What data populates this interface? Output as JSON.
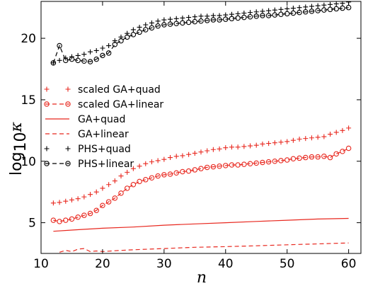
{
  "chart_data": {
    "type": "line",
    "title": "",
    "xlabel": "n",
    "ylabel_main": "log",
    "ylabel_sub": "10",
    "ylabel_var": "κ",
    "xlim": [
      10,
      62
    ],
    "ylim": [
      2.5,
      23
    ],
    "xticks": [
      10,
      20,
      30,
      40,
      50,
      60
    ],
    "yticks": [
      5,
      10,
      15,
      20
    ],
    "legend_position": "center-left",
    "series": [
      {
        "name": "scaled GA+quad",
        "color": "#e8281f",
        "line": "none",
        "marker": "plus",
        "x": [
          12,
          13,
          14,
          15,
          16,
          17,
          18,
          19,
          20,
          21,
          22,
          23,
          24,
          25,
          26,
          27,
          28,
          29,
          30,
          31,
          32,
          33,
          34,
          35,
          36,
          37,
          38,
          39,
          40,
          41,
          42,
          43,
          44,
          45,
          46,
          47,
          48,
          49,
          50,
          51,
          52,
          53,
          54,
          55,
          56,
          57,
          58,
          59,
          60
        ],
        "y": [
          6.6,
          6.65,
          6.75,
          6.85,
          6.95,
          7.1,
          7.3,
          7.5,
          7.8,
          8.1,
          8.4,
          8.8,
          9.1,
          9.4,
          9.6,
          9.8,
          9.95,
          10.05,
          10.15,
          10.3,
          10.4,
          10.45,
          10.55,
          10.65,
          10.75,
          10.85,
          10.95,
          11.0,
          11.1,
          11.15,
          11.15,
          11.2,
          11.25,
          11.3,
          11.4,
          11.45,
          11.5,
          11.55,
          11.6,
          11.7,
          11.8,
          11.85,
          11.9,
          11.95,
          12.0,
          12.2,
          12.35,
          12.5,
          12.7
        ]
      },
      {
        "name": "scaled GA+linear",
        "color": "#e8281f",
        "line": "dashed",
        "marker": "circle",
        "x": [
          12,
          13,
          14,
          15,
          16,
          17,
          18,
          19,
          20,
          21,
          22,
          23,
          24,
          25,
          26,
          27,
          28,
          29,
          30,
          31,
          32,
          33,
          34,
          35,
          36,
          37,
          38,
          39,
          40,
          41,
          42,
          43,
          44,
          45,
          46,
          47,
          48,
          49,
          50,
          51,
          52,
          53,
          54,
          55,
          56,
          57,
          58,
          59,
          60
        ],
        "y": [
          5.2,
          5.1,
          5.2,
          5.3,
          5.45,
          5.6,
          5.75,
          6.0,
          6.4,
          6.7,
          7.0,
          7.4,
          7.8,
          8.1,
          8.35,
          8.5,
          8.65,
          8.8,
          8.9,
          8.95,
          9.05,
          9.15,
          9.2,
          9.3,
          9.4,
          9.5,
          9.55,
          9.6,
          9.65,
          9.7,
          9.7,
          9.75,
          9.8,
          9.85,
          9.9,
          9.95,
          10.0,
          10.05,
          10.1,
          10.2,
          10.25,
          10.3,
          10.35,
          10.35,
          10.4,
          10.3,
          10.6,
          10.8,
          11.05
        ]
      },
      {
        "name": "GA+quad",
        "color": "#e8281f",
        "line": "solid",
        "marker": "none",
        "x": [
          12,
          15,
          20,
          25,
          30,
          35,
          40,
          45,
          50,
          55,
          60
        ],
        "y": [
          4.3,
          4.4,
          4.55,
          4.65,
          4.8,
          4.9,
          5.0,
          5.1,
          5.2,
          5.3,
          5.35
        ]
      },
      {
        "name": "GA+linear",
        "color": "#e8281f",
        "line": "dashed",
        "marker": "none",
        "x": [
          13,
          14,
          15,
          16,
          17,
          18,
          19,
          20,
          22,
          25,
          30,
          35,
          40,
          45,
          50,
          55,
          60
        ],
        "y": [
          2.6,
          2.75,
          2.65,
          2.85,
          2.9,
          2.65,
          2.7,
          2.65,
          2.72,
          2.8,
          2.9,
          3.0,
          3.05,
          3.12,
          3.2,
          3.28,
          3.35
        ]
      },
      {
        "name": "PHS+quad",
        "color": "#000000",
        "line": "none",
        "marker": "plus",
        "x": [
          12,
          13,
          14,
          15,
          16,
          17,
          18,
          19,
          20,
          21,
          22,
          23,
          24,
          25,
          26,
          27,
          28,
          29,
          30,
          31,
          32,
          33,
          34,
          35,
          36,
          37,
          38,
          39,
          40,
          41,
          42,
          43,
          44,
          45,
          46,
          47,
          48,
          49,
          50,
          51,
          52,
          53,
          54,
          55,
          56,
          57,
          58,
          59,
          60
        ],
        "y": [
          18.0,
          18.2,
          18.4,
          18.5,
          18.6,
          18.7,
          18.9,
          19.0,
          19.2,
          19.4,
          19.8,
          20.1,
          20.4,
          20.7,
          20.9,
          21.1,
          21.25,
          21.4,
          21.5,
          21.55,
          21.6,
          21.65,
          21.7,
          21.75,
          21.8,
          21.8,
          21.85,
          21.85,
          21.9,
          21.95,
          22.0,
          22.05,
          22.1,
          22.15,
          22.2,
          22.25,
          22.3,
          22.35,
          22.4,
          22.45,
          22.5,
          22.55,
          22.6,
          22.65,
          22.7,
          22.75,
          22.8,
          22.85,
          22.95
        ]
      },
      {
        "name": "PHS+linear",
        "color": "#000000",
        "line": "dashed",
        "marker": "circle",
        "x": [
          12,
          13,
          14,
          15,
          16,
          17,
          18,
          19,
          20,
          21,
          22,
          23,
          24,
          25,
          26,
          27,
          28,
          29,
          30,
          31,
          32,
          33,
          34,
          35,
          36,
          37,
          38,
          39,
          40,
          41,
          42,
          43,
          44,
          45,
          46,
          47,
          48,
          49,
          50,
          51,
          52,
          53,
          54,
          55,
          56,
          57,
          58,
          59,
          60
        ],
        "y": [
          18.0,
          19.4,
          18.2,
          18.3,
          18.2,
          18.15,
          18.1,
          18.3,
          18.6,
          18.8,
          19.5,
          19.8,
          20.1,
          20.3,
          20.5,
          20.7,
          20.85,
          21.0,
          21.1,
          21.15,
          21.2,
          21.25,
          21.3,
          21.35,
          21.4,
          21.45,
          21.5,
          21.5,
          21.55,
          21.6,
          21.65,
          21.7,
          21.75,
          21.8,
          21.85,
          21.85,
          21.9,
          21.95,
          22.0,
          22.05,
          22.1,
          22.15,
          22.2,
          22.25,
          22.3,
          22.35,
          22.4,
          22.45,
          22.5
        ]
      }
    ]
  }
}
